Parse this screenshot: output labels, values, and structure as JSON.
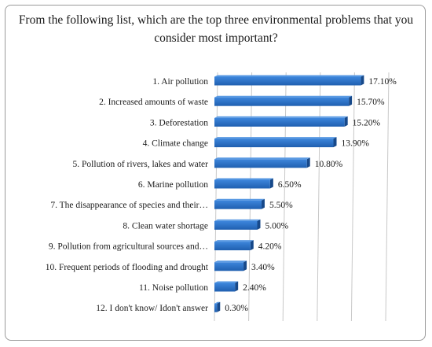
{
  "chart_data": {
    "type": "bar",
    "orientation": "horizontal",
    "title": "From the following list, which are the top three environmental problems that you consider most important?",
    "categories": [
      "1. Air pollution",
      "2. Increased amounts of waste",
      "3. Deforestation",
      "4. Climate change",
      "5. Pollution of rivers, lakes and water",
      "6. Marine pollution",
      "7. The disappearance of species and their…",
      "8. Clean water shortage",
      "9. Pollution from agricultural sources and…",
      "10. Frequent periods of flooding and drought",
      "11. Noise pollution",
      "12. I don't know/ Idon't answer"
    ],
    "values": [
      17.1,
      15.7,
      15.2,
      13.9,
      10.8,
      6.5,
      5.5,
      5.0,
      4.2,
      3.4,
      2.4,
      0.3
    ],
    "value_labels": [
      "17.10%",
      "15.70%",
      "15.20%",
      "13.90%",
      "10.80%",
      "6.50%",
      "5.50%",
      "5.00%",
      "4.20%",
      "3.40%",
      "2.40%",
      "0.30%"
    ],
    "xlim": [
      0,
      20
    ],
    "grid": true,
    "bar_color": "#2f75c9"
  }
}
